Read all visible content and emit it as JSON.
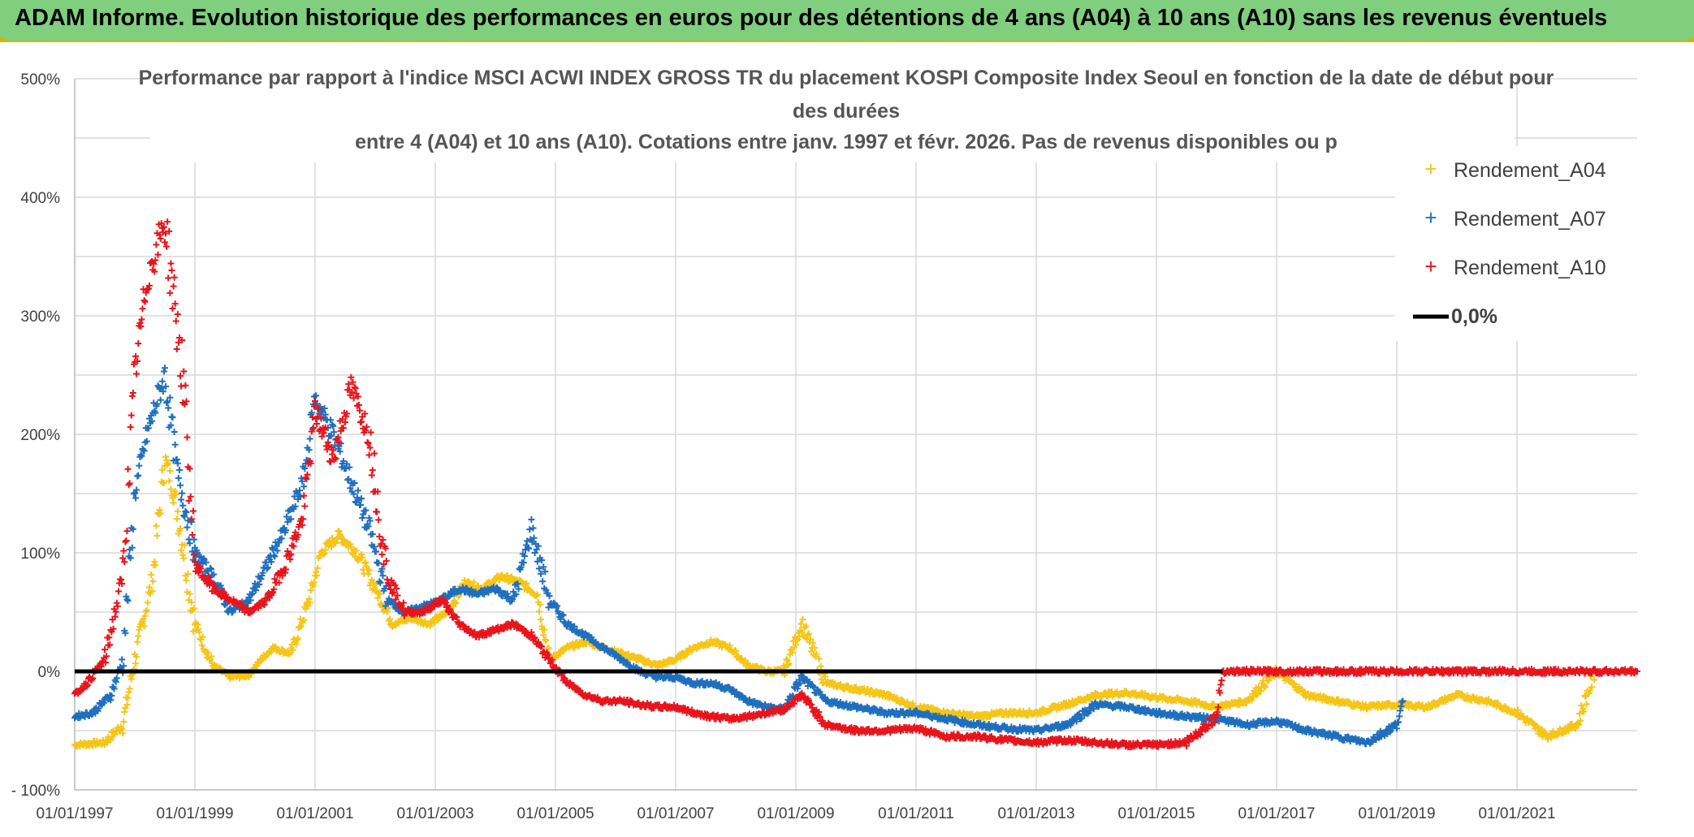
{
  "header": {
    "title": "ADAM Informe. Evolution historique des performances en euros pour des détentions de 4 ans (A04) à 10 ans (A10) sans les revenus éventuels"
  },
  "chart_data": {
    "type": "scatter",
    "title_lines": [
      "Performance par rapport à l'indice MSCI ACWI INDEX GROSS TR  du placement KOSPI Composite Index Seoul en fonction de la date de début pour",
      "des durées",
      "entre 4 (A04) et 10 ans (A10). Cotations entre janv. 1997 et févr. 2026. Pas de revenus disponibles ou p"
    ],
    "x_ticks": [
      "01/01/1997",
      "01/01/1999",
      "01/01/2001",
      "01/01/2003",
      "01/01/2005",
      "01/01/2007",
      "01/01/2009",
      "01/01/2011",
      "01/01/2013",
      "01/01/2015",
      "01/01/2017",
      "01/01/2019",
      "01/01/2021"
    ],
    "y_ticks": [
      "500%",
      "400%",
      "300%",
      "200%",
      "100%",
      "0%",
      "- 100%"
    ],
    "xlim": [
      1997.0,
      2023.0
    ],
    "ylim": [
      -100,
      500
    ],
    "legend": [
      {
        "label": "Rendement_A04",
        "color": "#f5c518",
        "marker": "+"
      },
      {
        "label": "Rendement_A07",
        "color": "#1f6fbf",
        "marker": "+"
      },
      {
        "label": "Rendement_A10",
        "color": "#e8141c",
        "marker": "+"
      },
      {
        "label": "0,0%",
        "color": "#000000",
        "marker": "line"
      }
    ],
    "series": [
      {
        "name": "Rendement_A04",
        "color": "#f5c518",
        "x": [
          1997.0,
          1997.5,
          1997.8,
          1998.0,
          1998.3,
          1998.5,
          1998.7,
          1999.0,
          1999.3,
          1999.6,
          1999.9,
          2000.1,
          2000.3,
          2000.6,
          2000.9,
          2001.1,
          2001.4,
          2001.7,
          2002.0,
          2002.3,
          2002.6,
          2002.9,
          2003.2,
          2003.5,
          2003.8,
          2004.1,
          2004.4,
          2004.7,
          2004.9,
          2005.2,
          2005.5,
          2005.8,
          2006.1,
          2006.4,
          2006.7,
          2007.0,
          2007.3,
          2007.6,
          2007.9,
          2008.2,
          2008.5,
          2008.8,
          2009.1,
          2009.5,
          2010.0,
          2010.5,
          2011.0,
          2011.5,
          2012.0,
          2012.5,
          2013.0,
          2013.5,
          2014.0,
          2014.5,
          2015.0,
          2015.5,
          2016.0,
          2016.5,
          2017.0,
          2017.5,
          2018.0,
          2018.5,
          2019.0,
          2019.5,
          2020.0,
          2020.5,
          2021.0,
          2021.5,
          2022.0,
          2022.3
        ],
        "y": [
          -62,
          -60,
          -45,
          10,
          80,
          180,
          140,
          40,
          5,
          -5,
          -3,
          10,
          20,
          15,
          60,
          100,
          115,
          100,
          70,
          40,
          45,
          40,
          50,
          75,
          70,
          80,
          75,
          65,
          10,
          20,
          25,
          20,
          15,
          10,
          5,
          10,
          20,
          25,
          20,
          5,
          0,
          0,
          40,
          -10,
          -15,
          -20,
          -30,
          -35,
          -38,
          -35,
          -35,
          -28,
          -20,
          -18,
          -22,
          -25,
          -30,
          -25,
          0,
          -20,
          -25,
          -30,
          -28,
          -30,
          -20,
          -25,
          -35,
          -55,
          -45,
          0
        ]
      },
      {
        "name": "Rendement_A07",
        "color": "#1f6fbf",
        "x": [
          1997.0,
          1997.3,
          1997.6,
          1997.8,
          1998.0,
          1998.2,
          1998.5,
          1998.7,
          1999.0,
          1999.3,
          1999.6,
          1999.9,
          2000.2,
          2000.5,
          2000.8,
          2001.0,
          2001.3,
          2001.6,
          2001.9,
          2002.2,
          2002.5,
          2002.8,
          2003.1,
          2003.4,
          2003.7,
          2004.0,
          2004.3,
          2004.6,
          2004.9,
          2005.2,
          2005.5,
          2005.8,
          2006.1,
          2006.4,
          2006.7,
          2007.0,
          2007.3,
          2007.6,
          2007.9,
          2008.2,
          2008.5,
          2008.8,
          2009.1,
          2009.5,
          2010.0,
          2010.5,
          2011.0,
          2011.5,
          2012.0,
          2012.5,
          2013.0,
          2013.5,
          2014.0,
          2014.5,
          2015.0,
          2015.5,
          2016.0,
          2016.5,
          2017.0,
          2017.5,
          2018.0,
          2018.5,
          2019.0,
          2019.1
        ],
        "y": [
          -38,
          -35,
          -20,
          10,
          150,
          200,
          250,
          170,
          100,
          80,
          50,
          60,
          90,
          120,
          160,
          230,
          200,
          160,
          120,
          60,
          50,
          55,
          60,
          70,
          65,
          70,
          60,
          120,
          60,
          40,
          30,
          20,
          10,
          0,
          -5,
          -5,
          -10,
          -10,
          -15,
          -25,
          -30,
          -32,
          -5,
          -25,
          -30,
          -35,
          -35,
          -40,
          -45,
          -48,
          -50,
          -45,
          -28,
          -30,
          -35,
          -38,
          -40,
          -45,
          -42,
          -50,
          -55,
          -60,
          -45,
          -25
        ]
      },
      {
        "name": "Rendement_A10",
        "color": "#e8141c",
        "x": [
          1997.0,
          1997.2,
          1997.5,
          1997.8,
          1998.0,
          1998.2,
          1998.5,
          1998.8,
          1999.0,
          1999.3,
          1999.6,
          1999.9,
          2000.2,
          2000.5,
          2000.8,
          2001.0,
          2001.3,
          2001.6,
          2001.9,
          2002.2,
          2002.5,
          2002.8,
          2003.1,
          2003.4,
          2003.7,
          2004.0,
          2004.3,
          2004.6,
          2004.9,
          2005.2,
          2005.5,
          2005.8,
          2006.1,
          2006.4,
          2006.7,
          2007.0,
          2007.3,
          2007.6,
          2007.9,
          2008.2,
          2008.5,
          2008.8,
          2009.1,
          2009.5,
          2010.0,
          2010.5,
          2011.0,
          2011.5,
          2012.0,
          2012.5,
          2013.0,
          2013.5,
          2014.0,
          2014.5,
          2015.0,
          2015.5,
          2016.0,
          2016.1,
          2016.5,
          2017.0,
          2018.0,
          2019.0,
          2020.0,
          2021.0,
          2022.0,
          2023.0
        ],
        "y": [
          -20,
          -10,
          10,
          80,
          250,
          330,
          380,
          250,
          90,
          70,
          60,
          50,
          60,
          90,
          130,
          220,
          180,
          240,
          200,
          80,
          50,
          50,
          60,
          40,
          30,
          35,
          40,
          30,
          10,
          -10,
          -20,
          -25,
          -25,
          -28,
          -30,
          -30,
          -35,
          -38,
          -40,
          -38,
          -35,
          -32,
          -20,
          -45,
          -50,
          -50,
          -48,
          -55,
          -55,
          -58,
          -60,
          -58,
          -60,
          -62,
          -62,
          -60,
          -38,
          0,
          0,
          0,
          0,
          0,
          0,
          0,
          0,
          0
        ]
      }
    ]
  }
}
